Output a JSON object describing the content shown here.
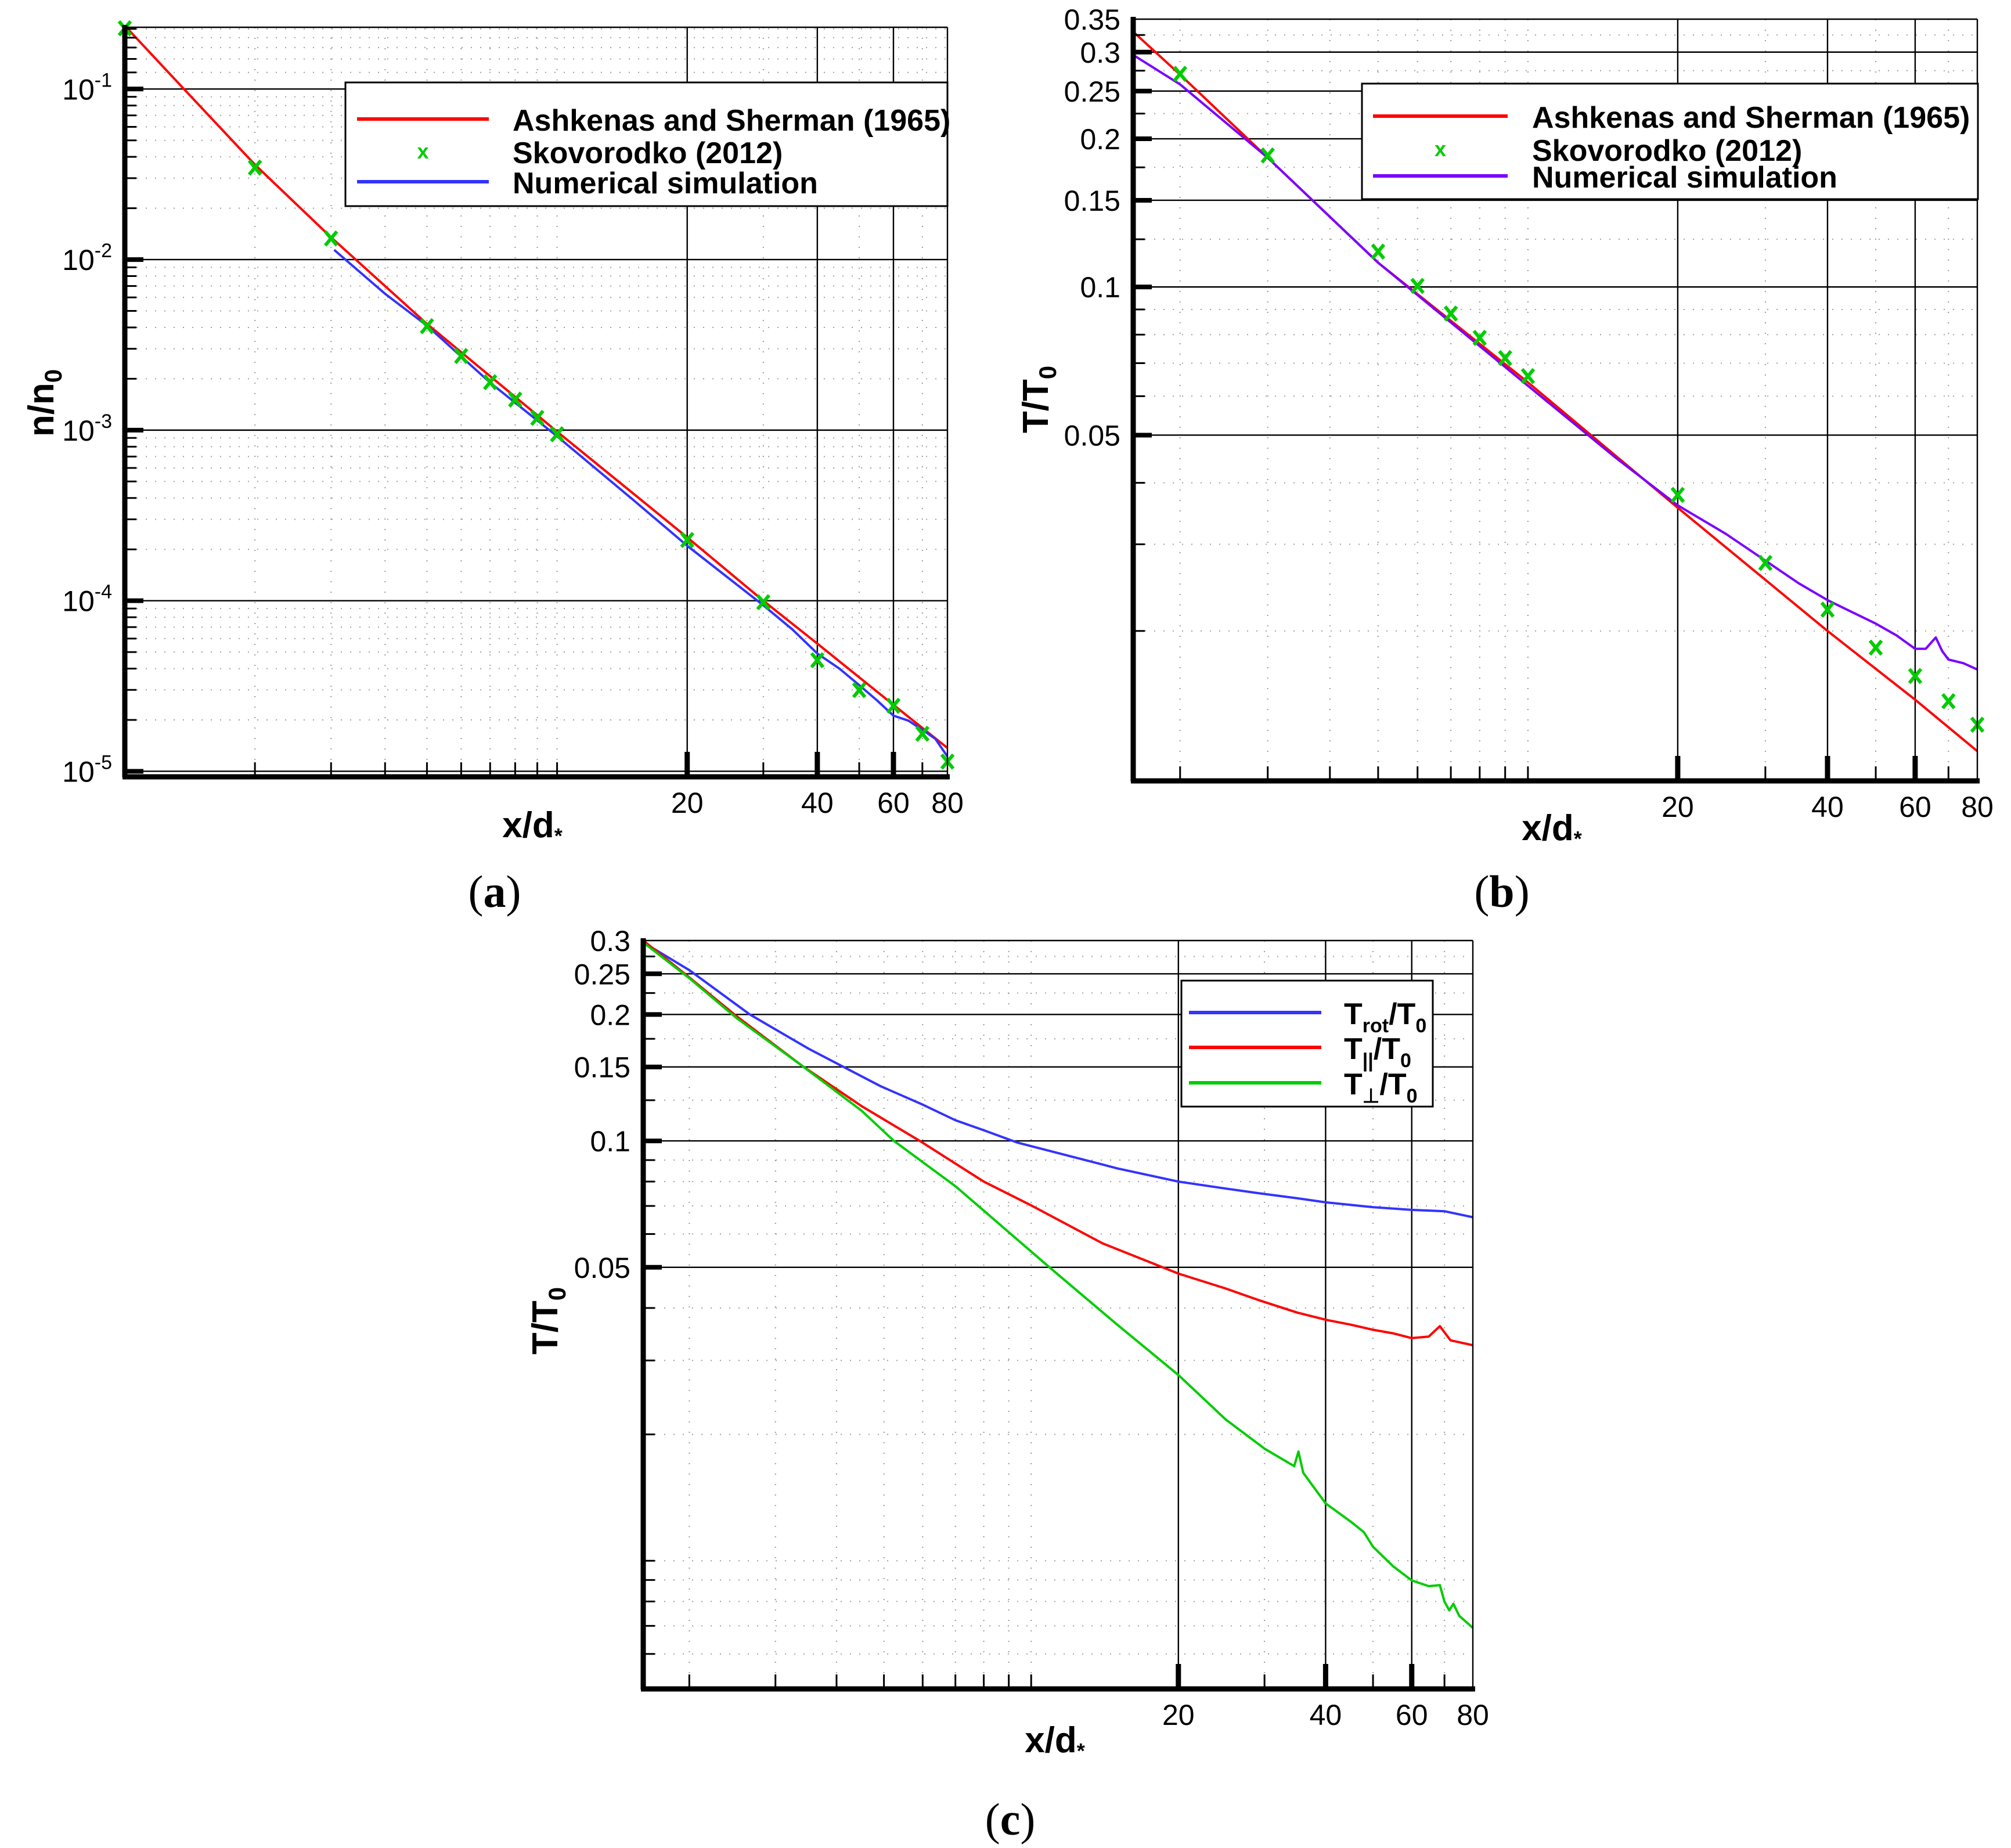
{
  "figure": {
    "panel_labels": [
      "(a)",
      "(b)",
      "(c)"
    ]
  },
  "colors": {
    "red": "#ff0000",
    "blue": "#3333ff",
    "purple": "#7a00ff",
    "green_marker": "#00cc00",
    "green_line": "#00cc00",
    "axis": "#000000",
    "grid_major": "#000000",
    "grid_minor": "#9a9a9a"
  },
  "chart_data": [
    {
      "id": "a",
      "type": "line",
      "title": "",
      "panel_label": "(a)",
      "xlabel": "x/d*",
      "xlabel_main": "x/d",
      "xlabel_sub": "*",
      "ylabel": "n/n0",
      "ylabel_main": "n/n",
      "ylabel_sub": "0",
      "xscale": "log",
      "yscale": "log",
      "xlim": [
        1,
        80
      ],
      "ylim": [
        9.5e-06,
        0.23
      ],
      "x_tick_labels": [
        {
          "value": 20,
          "label": "20"
        },
        {
          "value": 40,
          "label": "40"
        },
        {
          "value": 60,
          "label": "60"
        },
        {
          "value": 80,
          "label": "80"
        }
      ],
      "y_tick_labels": [
        {
          "value": 0.1,
          "base": "10",
          "exp": "-1"
        },
        {
          "value": 0.01,
          "base": "10",
          "exp": "-2"
        },
        {
          "value": 0.001,
          "base": "10",
          "exp": "-3"
        },
        {
          "value": 0.0001,
          "base": "10",
          "exp": "-4"
        },
        {
          "value": 1e-05,
          "base": "10",
          "exp": "-5"
        }
      ],
      "grid": true,
      "legend_position": "upper right",
      "legend": [
        {
          "label": "Ashkenas and Sherman (1965)",
          "kind": "line",
          "color": "#ff0000"
        },
        {
          "label": "Skovorodko (2012)",
          "kind": "marker",
          "color": "#00cc00"
        },
        {
          "label": "Numerical simulation",
          "kind": "line",
          "color": "#3333ff"
        }
      ],
      "series": [
        {
          "name": "Ashkenas and Sherman (1965)",
          "kind": "line",
          "color": "#ff0000",
          "x": [
            1,
            1.37,
            2,
            3,
            5,
            10,
            20,
            30,
            40,
            60,
            80
          ],
          "y": [
            0.235,
            0.1,
            0.036,
            0.0135,
            0.0042,
            0.00098,
            0.000235,
            0.0001,
            5.6e-05,
            2.45e-05,
            1.37e-05
          ]
        },
        {
          "name": "Skovorodko (2012)",
          "kind": "marker",
          "color": "#00cc00",
          "x": [
            1,
            2,
            3,
            5,
            6,
            7,
            8,
            9,
            10,
            20,
            30,
            40,
            50,
            60,
            70,
            80
          ],
          "y": [
            0.227,
            0.0346,
            0.0133,
            0.00407,
            0.00272,
            0.00191,
            0.00151,
            0.00118,
            0.000946,
            0.000227,
            9.8e-05,
            4.48e-05,
            2.99e-05,
            2.42e-05,
            1.66e-05,
            1.14e-05
          ]
        },
        {
          "name": "Numerical simulation",
          "kind": "line",
          "color": "#3333ff",
          "x": [
            3.05,
            4,
            5,
            7,
            10,
            15,
            20,
            30,
            35,
            40,
            45,
            50,
            55,
            60,
            65,
            70,
            75,
            80
          ],
          "y": [
            0.0114,
            0.0063,
            0.0041,
            0.0019,
            0.00092,
            0.00039,
            0.00021,
            9.4e-05,
            6.8e-05,
            4.9e-05,
            4e-05,
            3.2e-05,
            2.6e-05,
            2.12e-05,
            1.98e-05,
            1.75e-05,
            1.55e-05,
            1.22e-05
          ]
        }
      ]
    },
    {
      "id": "b",
      "type": "line",
      "title": "",
      "panel_label": "(b)",
      "xlabel": "x/d*",
      "xlabel_main": "x/d",
      "xlabel_sub": "*",
      "ylabel": "T/T0",
      "ylabel_main": "T/T",
      "ylabel_sub": "0",
      "xscale": "log",
      "yscale": "log",
      "xlim": [
        1.61,
        80
      ],
      "ylim": [
        0.01,
        0.35
      ],
      "x_tick_labels": [
        {
          "value": 20,
          "label": "20"
        },
        {
          "value": 40,
          "label": "40"
        },
        {
          "value": 60,
          "label": "60"
        },
        {
          "value": 80,
          "label": "80"
        }
      ],
      "y_tick_labels": [
        {
          "value": 0.35,
          "label": "0.35"
        },
        {
          "value": 0.3,
          "label": "0.3"
        },
        {
          "value": 0.25,
          "label": "0.25"
        },
        {
          "value": 0.2,
          "label": "0.2"
        },
        {
          "value": 0.15,
          "label": "0.15"
        },
        {
          "value": 0.1,
          "label": "0.1"
        },
        {
          "value": 0.05,
          "label": "0.05"
        }
      ],
      "grid": true,
      "legend_position": "upper right",
      "legend": [
        {
          "label": "Ashkenas and Sherman (1965)",
          "kind": "line",
          "color": "#ff0000"
        },
        {
          "label": "Skovorodko (2012)",
          "kind": "marker",
          "color": "#00cc00"
        },
        {
          "label": "Numerical simulation",
          "kind": "line",
          "color": "#7a00ff"
        }
      ],
      "series": [
        {
          "name": "Ashkenas and Sherman (1965)",
          "kind": "line",
          "color": "#ff0000",
          "x": [
            1.61,
            2,
            3,
            5,
            10,
            20,
            40,
            60,
            80
          ],
          "y": [
            0.33,
            0.27,
            0.183,
            0.112,
            0.064,
            0.0356,
            0.02,
            0.0145,
            0.0114
          ]
        },
        {
          "name": "Skovorodko (2012)",
          "kind": "marker",
          "color": "#00cc00",
          "x": [
            2,
            3,
            5,
            6,
            7,
            8,
            9,
            10,
            20,
            30,
            40,
            50,
            60,
            70,
            80
          ],
          "y": [
            0.271,
            0.185,
            0.118,
            0.1005,
            0.0883,
            0.0788,
            0.0717,
            0.0659,
            0.0378,
            0.0275,
            0.0221,
            0.0185,
            0.0162,
            0.0144,
            0.0129
          ]
        },
        {
          "name": "Numerical simulation",
          "kind": "line",
          "color": "#7a00ff",
          "x": [
            1.61,
            2,
            3,
            5,
            10,
            15,
            20,
            25,
            30,
            35,
            40,
            45,
            50,
            55,
            60,
            63,
            66,
            68,
            70,
            75,
            80
          ],
          "y": [
            0.296,
            0.258,
            0.183,
            0.112,
            0.063,
            0.045,
            0.036,
            0.0315,
            0.0278,
            0.025,
            0.0231,
            0.0218,
            0.0207,
            0.0196,
            0.0184,
            0.0184,
            0.0194,
            0.0182,
            0.0175,
            0.0172,
            0.0167
          ]
        }
      ]
    },
    {
      "id": "c",
      "type": "line",
      "title": "",
      "panel_label": "(c)",
      "xlabel": "x/d*",
      "xlabel_main": "x/d",
      "xlabel_sub": "*",
      "ylabel": "T/T0",
      "ylabel_main": "T/T",
      "ylabel_sub": "0",
      "xscale": "log",
      "yscale": "log",
      "xlim": [
        1.61,
        80
      ],
      "ylim": [
        0.005,
        0.3
      ],
      "x_tick_labels": [
        {
          "value": 20,
          "label": "20"
        },
        {
          "value": 40,
          "label": "40"
        },
        {
          "value": 60,
          "label": "60"
        },
        {
          "value": 80,
          "label": "80"
        }
      ],
      "y_tick_labels": [
        {
          "value": 0.3,
          "label": "0.3"
        },
        {
          "value": 0.25,
          "label": "0.25"
        },
        {
          "value": 0.2,
          "label": "0.2"
        },
        {
          "value": 0.15,
          "label": "0.15"
        },
        {
          "value": 0.1,
          "label": "0.1"
        },
        {
          "value": 0.05,
          "label": "0.05"
        }
      ],
      "grid": true,
      "legend_position": "upper right",
      "legend": [
        {
          "label": "Trot/T0",
          "main": "T",
          "sub": "rot",
          "tail": "/T",
          "tail_sub": "0",
          "kind": "line",
          "color": "#3333ff"
        },
        {
          "label": "T||/T0",
          "main": "T",
          "sub": "||",
          "tail": "/T",
          "tail_sub": "0",
          "kind": "line",
          "color": "#ff0000"
        },
        {
          "label": "T⊥/T0",
          "main": "T",
          "sub": "⊥",
          "tail": "/T",
          "tail_sub": "0",
          "kind": "line",
          "color": "#00cc00"
        }
      ],
      "series": [
        {
          "name": "Trot/T0",
          "kind": "line",
          "color": "#3333ff",
          "x": [
            1.61,
            2,
            2.66,
            3.5,
            4.92,
            6,
            7,
            8,
            9.39,
            12,
            15,
            20,
            25,
            29.3,
            35,
            40,
            50,
            60,
            70,
            80
          ],
          "y": [
            0.297,
            0.255,
            0.2,
            0.166,
            0.135,
            0.122,
            0.112,
            0.106,
            0.099,
            0.092,
            0.086,
            0.08,
            0.077,
            0.075,
            0.073,
            0.0714,
            0.0695,
            0.0685,
            0.068,
            0.0658
          ]
        },
        {
          "name": "T||/T0",
          "kind": "line",
          "color": "#ff0000",
          "x": [
            1.61,
            2,
            2.5,
            3.4,
            4.5,
            5.92,
            8,
            9.98,
            14,
            20,
            25,
            29.3,
            35,
            40,
            45,
            50,
            55,
            60,
            65,
            68.5,
            72,
            80
          ],
          "y": [
            0.3,
            0.245,
            0.198,
            0.151,
            0.121,
            0.1,
            0.08,
            0.0703,
            0.057,
            0.0483,
            0.0445,
            0.0417,
            0.039,
            0.0375,
            0.0365,
            0.0355,
            0.0348,
            0.0339,
            0.0342,
            0.0362,
            0.0335,
            0.0326
          ]
        },
        {
          "name": "T⊥/T0",
          "kind": "line",
          "color": "#00cc00",
          "x": [
            1.61,
            2,
            2.5,
            3.4,
            4.5,
            5.24,
            7,
            10.9,
            15,
            20,
            25,
            30,
            34.5,
            35.2,
            36,
            40,
            45,
            47.9,
            50,
            55,
            60,
            65,
            68.5,
            70,
            71.6,
            73,
            75,
            80
          ],
          "y": [
            0.297,
            0.244,
            0.196,
            0.151,
            0.118,
            0.1,
            0.078,
            0.05,
            0.0365,
            0.0277,
            0.0217,
            0.0185,
            0.0168,
            0.0182,
            0.0162,
            0.0137,
            0.0124,
            0.0117,
            0.0108,
            0.0097,
            0.00898,
            0.0087,
            0.00875,
            0.008,
            0.00762,
            0.0079,
            0.0074,
            0.00692
          ]
        }
      ]
    }
  ]
}
